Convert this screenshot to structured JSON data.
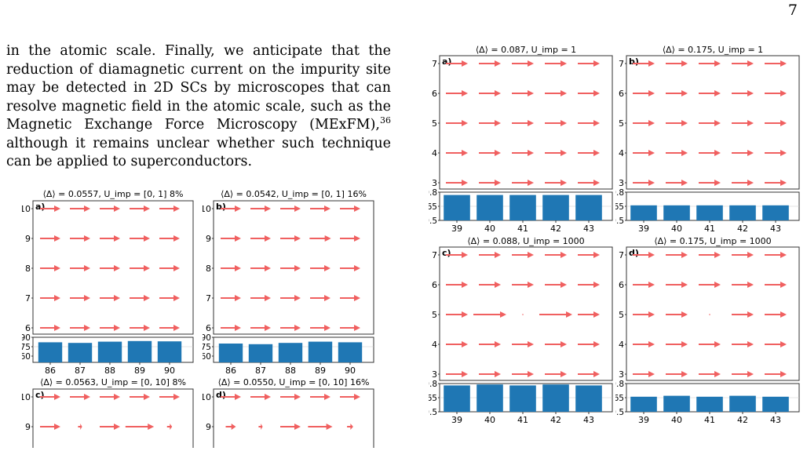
{
  "page_number": "7",
  "paragraph": {
    "text_before_ref": "in the atomic scale. Finally, we anticipate that the reduction of diamagnetic current on the impurity site may be detected in 2D SCs by microscopes that can resolve magnetic field in the atomic scale, such as the Magnetic Exchange Force Microscopy (MExFM),",
    "reference": "36",
    "text_after_ref": " although it remains unclear whether such technique can be applied to superconductors."
  },
  "colors": {
    "arrow": "#f06060",
    "bar": "#1f77b4",
    "frame": "#333333"
  },
  "chart_data": [
    {
      "type": "quiver+bar",
      "panel_label": "a)",
      "title_mean": "⟨Δ⟩ = 0.0557,",
      "title_u": "U_imp = [0, 1] 8%",
      "y_ticks": [
        "10",
        "9",
        "8",
        "7",
        "6"
      ],
      "x_ticks": [
        "86",
        "87",
        "88",
        "89",
        "90"
      ],
      "bar_yticks": [
        "0.90",
        "0.75",
        "0.60"
      ],
      "bar_ylim": [
        0.5,
        0.9
      ],
      "bar_values": [
        0.82,
        0.81,
        0.83,
        0.84,
        0.835
      ],
      "arrow_lengths": [
        [
          1,
          1,
          1,
          1,
          1
        ],
        [
          1,
          1,
          1,
          1,
          1
        ],
        [
          1,
          1,
          1,
          1,
          1
        ],
        [
          1,
          1,
          1,
          1,
          1
        ],
        [
          1,
          1,
          1,
          1,
          1
        ]
      ]
    },
    {
      "type": "quiver+bar",
      "panel_label": "b)",
      "title_mean": "⟨Δ⟩ = 0.0542,",
      "title_u": "U_imp = [0, 1] 16%",
      "y_ticks": [
        "10",
        "9",
        "8",
        "7",
        "6"
      ],
      "x_ticks": [
        "86",
        "87",
        "88",
        "89",
        "90"
      ],
      "bar_yticks": [
        "0.90",
        "0.75",
        "0.60"
      ],
      "bar_ylim": [
        0.5,
        0.9
      ],
      "bar_values": [
        0.8,
        0.79,
        0.81,
        0.83,
        0.82
      ],
      "arrow_lengths": [
        [
          1,
          1,
          1,
          1,
          1
        ],
        [
          1,
          1,
          1,
          1.05,
          1
        ],
        [
          1,
          1,
          1,
          1,
          1
        ],
        [
          1,
          1,
          1,
          1,
          1
        ],
        [
          1,
          1,
          1,
          1,
          1
        ]
      ]
    },
    {
      "type": "quiver+bar",
      "panel_label": "c)",
      "title_mean": "⟨Δ⟩ = 0.0563,",
      "title_u": "U_imp = [0, 10] 8%",
      "y_ticks": [
        "10",
        "9"
      ],
      "x_ticks": [],
      "bar_yticks": [],
      "bar_ylim": [
        0.5,
        0.9
      ],
      "bar_values": [],
      "arrow_lengths": [
        [
          1,
          1,
          1,
          1,
          1
        ],
        [
          1,
          0.2,
          1,
          1.4,
          0.25
        ]
      ]
    },
    {
      "type": "quiver+bar",
      "panel_label": "d)",
      "title_mean": "⟨Δ⟩ = 0.0550,",
      "title_u": "U_imp = [0, 10] 16%",
      "y_ticks": [
        "10",
        "9"
      ],
      "x_ticks": [],
      "bar_yticks": [],
      "bar_ylim": [
        0.5,
        0.9
      ],
      "bar_values": [],
      "arrow_lengths": [
        [
          1,
          1,
          1,
          1,
          1
        ],
        [
          0.5,
          0.2,
          1,
          1.2,
          0.3
        ]
      ]
    },
    {
      "type": "quiver+bar",
      "panel_label": "a)",
      "title_mean": "⟨Δ⟩ = 0.087,",
      "title_u": "U_imp = 1",
      "y_ticks": [
        "7",
        "6",
        "5",
        "4",
        "3"
      ],
      "x_ticks": [
        "39",
        "40",
        "41",
        "42",
        "43"
      ],
      "bar_yticks": [
        "0.8",
        "0.65",
        "0.5"
      ],
      "bar_ylim": [
        0.5,
        0.8
      ],
      "bar_values": [
        0.77,
        0.77,
        0.77,
        0.77,
        0.77
      ],
      "arrow_lengths": [
        [
          1,
          1,
          1,
          1,
          1
        ],
        [
          1,
          1,
          1,
          1,
          1
        ],
        [
          1,
          1,
          1,
          1,
          1
        ],
        [
          1,
          1,
          1,
          1,
          1
        ],
        [
          1,
          1,
          1,
          1,
          1
        ]
      ]
    },
    {
      "type": "quiver+bar",
      "panel_label": "b)",
      "title_mean": "⟨Δ⟩ = 0.175,",
      "title_u": "U_imp = 1",
      "y_ticks": [
        "7",
        "6",
        "5",
        "4",
        "3"
      ],
      "x_ticks": [
        "39",
        "40",
        "41",
        "42",
        "43"
      ],
      "bar_yticks": [
        "0.8",
        "0.65",
        "0.5"
      ],
      "bar_ylim": [
        0.5,
        0.8
      ],
      "bar_values": [
        0.66,
        0.66,
        0.66,
        0.66,
        0.66
      ],
      "arrow_lengths": [
        [
          1,
          1,
          1,
          1,
          1
        ],
        [
          1,
          1,
          1,
          1,
          1
        ],
        [
          1,
          1,
          1,
          1,
          1
        ],
        [
          1,
          1,
          1,
          1,
          1
        ],
        [
          1,
          1,
          1,
          1,
          1
        ]
      ]
    },
    {
      "type": "quiver+bar",
      "panel_label": "c)",
      "title_mean": "⟨Δ⟩ = 0.088,",
      "title_u": "U_imp = 1000",
      "y_ticks": [
        "7",
        "6",
        "5",
        "4",
        "3"
      ],
      "x_ticks": [
        "39",
        "40",
        "41",
        "42",
        "43"
      ],
      "bar_yticks": [
        "0.8",
        "0.65",
        "0.5"
      ],
      "bar_ylim": [
        0.5,
        0.8
      ],
      "bar_values": [
        0.78,
        0.79,
        0.78,
        0.79,
        0.78
      ],
      "arrow_lengths": [
        [
          1,
          1,
          1,
          1,
          1
        ],
        [
          1,
          1,
          1,
          1,
          1
        ],
        [
          1,
          1.5,
          0.03,
          1.5,
          1
        ],
        [
          1,
          1,
          1,
          1,
          1
        ],
        [
          1,
          1,
          1,
          1,
          1
        ]
      ]
    },
    {
      "type": "quiver+bar",
      "panel_label": "d)",
      "title_mean": "⟨Δ⟩ = 0.175,",
      "title_u": "U_imp = 1000",
      "y_ticks": [
        "7",
        "6",
        "5",
        "4",
        "3"
      ],
      "x_ticks": [
        "39",
        "40",
        "41",
        "42",
        "43"
      ],
      "bar_yticks": [
        "0.8",
        "0.65",
        "0.5"
      ],
      "bar_ylim": [
        0.5,
        0.8
      ],
      "bar_values": [
        0.66,
        0.67,
        0.66,
        0.67,
        0.66
      ],
      "arrow_lengths": [
        [
          1,
          1,
          1,
          1,
          1
        ],
        [
          1,
          1,
          1,
          1,
          1
        ],
        [
          1,
          1,
          0.03,
          1,
          1
        ],
        [
          1,
          1,
          1,
          1,
          1
        ],
        [
          1,
          1,
          1,
          1,
          1
        ]
      ]
    }
  ]
}
